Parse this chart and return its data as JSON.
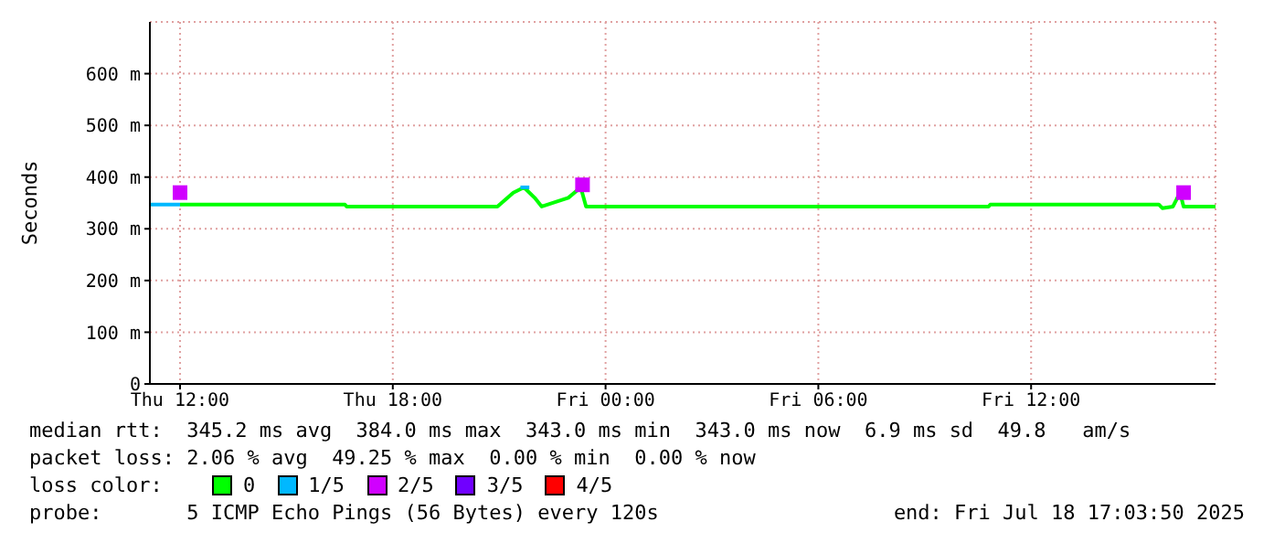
{
  "chart_data": {
    "type": "line",
    "ylabel": "Seconds",
    "legend_title": "loss color:",
    "xlim": [
      "2025-07-17T11:09",
      "2025-07-18T17:12"
    ],
    "xticks": [
      {
        "value": "2025-07-17T12:00",
        "label": "Thu 12:00"
      },
      {
        "value": "2025-07-17T18:00",
        "label": "Thu 18:00"
      },
      {
        "value": "2025-07-18T00:00",
        "label": "Fri 00:00"
      },
      {
        "value": "2025-07-18T06:00",
        "label": "Fri 06:00"
      },
      {
        "value": "2025-07-18T12:00",
        "label": "Fri 12:00"
      }
    ],
    "ylim": [
      0,
      700
    ],
    "yticks": [
      0,
      {
        "value": 100,
        "label": "100 m"
      },
      {
        "value": 200,
        "label": "200 m"
      },
      {
        "value": 300,
        "label": "300 m"
      },
      {
        "value": 400,
        "label": "400 m"
      },
      {
        "value": 500,
        "label": "500 m"
      },
      {
        "value": 600,
        "label": "600 m"
      }
    ],
    "grid": true,
    "legend": "bottom",
    "series": [
      {
        "name": "0",
        "color": "#00ff00",
        "x": [
          "2025-07-17T12:00",
          "2025-07-17T16:39",
          "2025-07-17T16:42",
          "2025-07-17T20:57",
          "2025-07-17T21:24",
          "2025-07-17T21:42",
          "2025-07-17T22:00",
          "2025-07-17T22:12",
          "2025-07-17T22:57",
          "2025-07-17T23:18",
          "2025-07-17T23:27",
          "2025-07-18T10:48",
          "2025-07-18T10:51",
          "2025-07-18T15:36",
          "2025-07-18T15:42",
          "2025-07-18T16:00",
          "2025-07-18T16:12",
          "2025-07-18T16:18",
          "2025-07-18T17:12"
        ],
        "values": [
          347,
          347,
          343,
          343,
          370,
          380,
          360,
          343,
          360,
          380,
          343,
          343,
          347,
          347,
          340,
          343,
          370,
          343,
          343
        ]
      },
      {
        "name": "1/5",
        "color": "#00b8ff",
        "x": [
          "2025-07-17T11:09",
          "2025-07-17T12:00",
          "2025-07-17T12:06",
          "2025-07-17T21:36",
          "2025-07-17T21:51"
        ],
        "values": [
          347,
          347,
          null,
          380,
          380
        ]
      },
      {
        "name": "2/5",
        "color": "#d000ff",
        "type": "scatter",
        "marker": "square",
        "x": [
          "2025-07-17T12:00",
          "2025-07-17T23:21",
          "2025-07-18T16:18"
        ],
        "values": [
          370,
          385,
          370
        ]
      },
      {
        "name": "3/5",
        "color": "#7000ff",
        "type": "scatter",
        "marker": "square"
      },
      {
        "name": "4/5",
        "color": "#ff0000",
        "type": "scatter",
        "marker": "square"
      }
    ],
    "annotations": [
      "median rtt:  345.2 ms avg  384.0 ms max  343.0 ms min  343.0 ms now  6.9 ms sd  49.8   am/s",
      "packet loss: 2.06 % avg  49.25 % max  0.00 % min  0.00 % now",
      "probe:       5 ICMP Echo Pings (56 Bytes) every 120s",
      "end: Fri Jul 18 17:03:50 2025"
    ]
  }
}
